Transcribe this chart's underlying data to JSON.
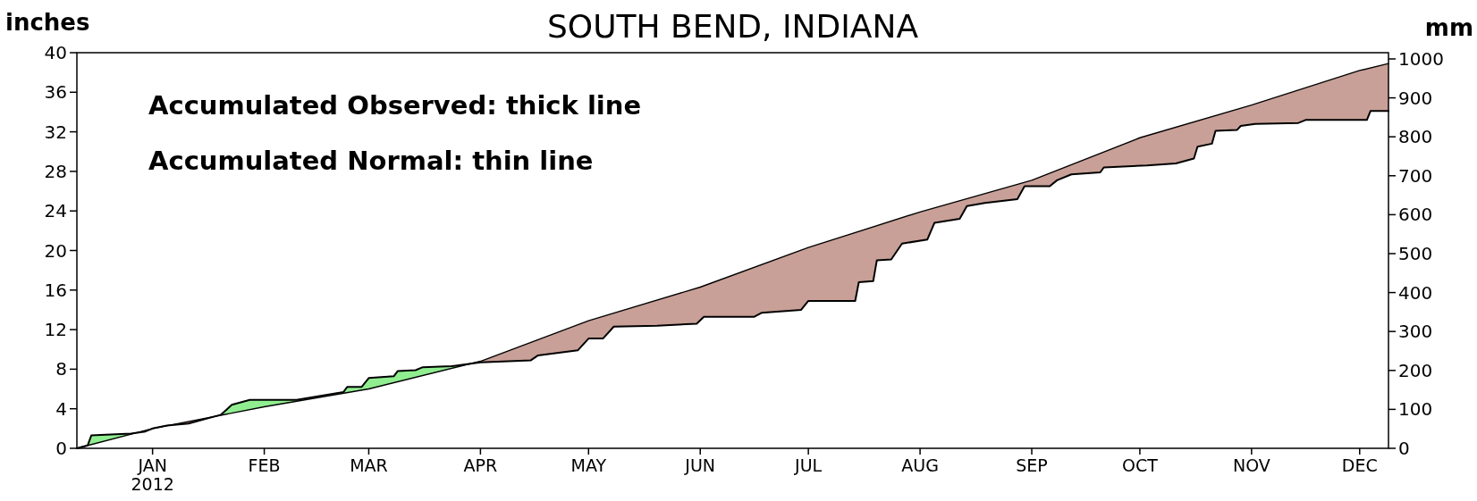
{
  "chart_data": {
    "type": "line",
    "title": "SOUTH BEND, INDIANA",
    "ylabel": "inches",
    "y2label": "mm",
    "annotations": [
      "Accumulated Observed: thick line",
      "Accumulated Normal: thin line"
    ],
    "xlim": [
      "2011-12-11",
      "2012-12-09"
    ],
    "xticks": [
      {
        "value": "2012-01-01",
        "label": "JAN\n2012"
      },
      {
        "value": "2012-02-01",
        "label": "FEB"
      },
      {
        "value": "2012-03-01",
        "label": "MAR"
      },
      {
        "value": "2012-04-01",
        "label": "APR"
      },
      {
        "value": "2012-05-01",
        "label": "MAY"
      },
      {
        "value": "2012-06-01",
        "label": "JUN"
      },
      {
        "value": "2012-07-01",
        "label": "JUL"
      },
      {
        "value": "2012-08-01",
        "label": "AUG"
      },
      {
        "value": "2012-09-01",
        "label": "SEP"
      },
      {
        "value": "2012-10-01",
        "label": "OCT"
      },
      {
        "value": "2012-11-01",
        "label": "NOV"
      },
      {
        "value": "2012-12-01",
        "label": "DEC"
      }
    ],
    "ylim": [
      0,
      40
    ],
    "yticks": [
      0,
      4,
      8,
      12,
      16,
      20,
      24,
      28,
      32,
      36,
      40
    ],
    "y2lim": [
      0,
      1016
    ],
    "y2ticks": [
      0,
      100,
      200,
      300,
      400,
      500,
      600,
      700,
      800,
      900,
      1000
    ],
    "colors": [
      "#90ee90",
      "#c8a097"
    ],
    "series": [
      {
        "color": "#000000",
        "x": [
          "2011-12-11",
          "2012-01-01",
          "2012-02-01",
          "2012-03-01",
          "2012-04-01",
          "2012-05-01",
          "2012-06-01",
          "2012-07-01",
          "2012-08-01",
          "2012-09-01",
          "2012-10-01",
          "2012-11-01",
          "2012-12-01",
          "2012-12-09"
        ],
        "values": [
          0,
          2.0,
          4.2,
          6.0,
          8.8,
          12.9,
          16.3,
          20.3,
          23.9,
          27.1,
          31.4,
          34.7,
          38.2,
          38.9
        ]
      },
      {
        "color": "#000000",
        "x": [
          "2011-12-11",
          "2011-12-14",
          "2011-12-15",
          "2011-12-26",
          "2011-12-30",
          "2012-01-01",
          "2012-01-05",
          "2012-01-11",
          "2012-01-20",
          "2012-01-23",
          "2012-01-28",
          "2012-02-10",
          "2012-02-23",
          "2012-02-24",
          "2012-02-28",
          "2012-03-01",
          "2012-03-08",
          "2012-03-09",
          "2012-03-14",
          "2012-03-16",
          "2012-03-24",
          "2012-03-26",
          "2012-04-01",
          "2012-04-15",
          "2012-04-17",
          "2012-04-28",
          "2012-05-01",
          "2012-05-05",
          "2012-05-08",
          "2012-05-20",
          "2012-05-31",
          "2012-06-02",
          "2012-06-16",
          "2012-06-18",
          "2012-06-29",
          "2012-07-01",
          "2012-07-14",
          "2012-07-15",
          "2012-07-19",
          "2012-07-20",
          "2012-07-24",
          "2012-07-27",
          "2012-08-03",
          "2012-08-05",
          "2012-08-12",
          "2012-08-14",
          "2012-08-19",
          "2012-08-28",
          "2012-08-30",
          "2012-09-06",
          "2012-09-08",
          "2012-09-12",
          "2012-09-20",
          "2012-09-21",
          "2012-10-03",
          "2012-10-11",
          "2012-10-16",
          "2012-10-17",
          "2012-10-21",
          "2012-10-22",
          "2012-10-28",
          "2012-10-29",
          "2012-11-02",
          "2012-11-14",
          "2012-11-16",
          "2012-12-03",
          "2012-12-04",
          "2012-12-09"
        ],
        "values": [
          0,
          0.3,
          1.3,
          1.5,
          1.7,
          2.0,
          2.3,
          2.5,
          3.4,
          4.4,
          4.9,
          4.9,
          5.7,
          6.2,
          6.2,
          7.1,
          7.3,
          7.8,
          7.9,
          8.2,
          8.3,
          8.4,
          8.7,
          8.9,
          9.4,
          9.9,
          11.1,
          11.1,
          12.3,
          12.4,
          12.6,
          13.3,
          13.3,
          13.7,
          14.0,
          14.9,
          14.9,
          16.8,
          16.9,
          19.0,
          19.1,
          20.7,
          21.1,
          22.8,
          23.2,
          24.5,
          24.8,
          25.2,
          26.5,
          26.5,
          27.1,
          27.7,
          27.9,
          28.4,
          28.6,
          28.8,
          29.3,
          30.5,
          30.8,
          32.1,
          32.2,
          32.6,
          32.8,
          32.9,
          33.2,
          33.2,
          34.1,
          34.1
        ]
      }
    ]
  }
}
